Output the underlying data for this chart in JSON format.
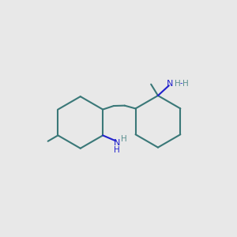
{
  "bg": "#e8e8e8",
  "bc": "#3a7878",
  "nc": "#2222cc",
  "lc": "#5a9090",
  "lw": 1.5,
  "r": 1.42,
  "lcx": 2.75,
  "lcy": 4.85,
  "rcx": 7.0,
  "rcy": 4.9,
  "xlim": [
    0,
    10
  ],
  "ylim": [
    0,
    10
  ]
}
